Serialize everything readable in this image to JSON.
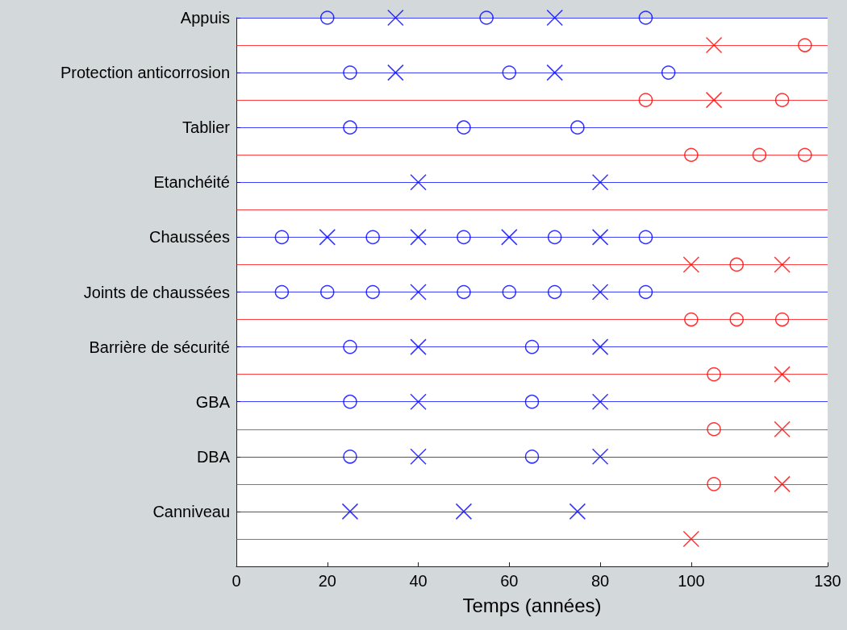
{
  "chart_data": {
    "type": "scatter",
    "orientation": "horizontal",
    "xlabel": "Temps (années)",
    "xlim": [
      0,
      130
    ],
    "xticks": [
      0,
      20,
      40,
      60,
      80,
      100,
      130
    ],
    "categories": [
      "Appuis",
      null,
      "Protection anticorrosion",
      null,
      "Tablier",
      null,
      "Etanchéité",
      null,
      "Chaussées",
      null,
      "Joints de chaussées",
      null,
      "Barrière de sécurité",
      null,
      "GBA",
      null,
      "DBA",
      null,
      "Canniveau",
      null
    ],
    "grid": "y",
    "series": [
      {
        "marker": "circle",
        "colors": [
          "#0000ff",
          "#ff0000",
          "#0000ff",
          "#ff0000",
          "#0000ff",
          "#ff0000",
          null,
          null,
          "#0000ff",
          "#ff0000",
          "#0000ff",
          "#ff0000",
          "#0000ff",
          "#ff0000",
          "#0000ff",
          "#ff0000",
          "#0000ff",
          "#ff0000",
          null,
          null
        ],
        "values": [
          20,
          125,
          25,
          90,
          25,
          100,
          null,
          null,
          10,
          110,
          10,
          100,
          25,
          105,
          25,
          105,
          25,
          105,
          null,
          null
        ]
      },
      {
        "marker": "circle",
        "colors": [
          "#0000ff",
          null,
          "#0000ff",
          "#ff0000",
          "#0000ff",
          "#ff0000",
          null,
          null,
          "#0000ff",
          null,
          "#0000ff",
          "#ff0000",
          "#0000ff",
          null,
          "#0000ff",
          null,
          "#0000ff",
          null,
          null,
          null
        ],
        "values": [
          55,
          null,
          60,
          120,
          50,
          115,
          null,
          null,
          30,
          null,
          20,
          110,
          65,
          null,
          65,
          null,
          65,
          null,
          null,
          null
        ]
      },
      {
        "marker": "circle",
        "colors": [
          "#0000ff",
          null,
          "#0000ff",
          null,
          "#0000ff",
          "#ff0000",
          null,
          null,
          "#0000ff",
          null,
          "#0000ff",
          "#ff0000",
          null,
          null,
          null,
          null,
          null,
          null,
          null,
          null
        ],
        "values": [
          90,
          null,
          95,
          null,
          75,
          125,
          null,
          null,
          50,
          null,
          30,
          120,
          null,
          null,
          null,
          null,
          null,
          null,
          null,
          null
        ]
      },
      {
        "marker": "circle",
        "colors": [
          null,
          null,
          null,
          null,
          null,
          null,
          null,
          null,
          "#0000ff",
          null,
          "#0000ff",
          null,
          null,
          null,
          null,
          null,
          null,
          null,
          null,
          null
        ],
        "values": [
          null,
          null,
          null,
          null,
          null,
          null,
          null,
          null,
          70,
          null,
          50,
          null,
          null,
          null,
          null,
          null,
          null,
          null,
          null,
          null
        ]
      },
      {
        "marker": "circle",
        "colors": [
          null,
          null,
          null,
          null,
          null,
          null,
          null,
          null,
          "#0000ff",
          null,
          "#0000ff",
          null,
          null,
          null,
          null,
          null,
          null,
          null,
          null,
          null
        ],
        "values": [
          null,
          null,
          null,
          null,
          null,
          null,
          null,
          null,
          90,
          null,
          60,
          null,
          null,
          null,
          null,
          null,
          null,
          null,
          null,
          null
        ]
      },
      {
        "marker": "circle",
        "colors": [
          null,
          null,
          null,
          null,
          null,
          null,
          null,
          null,
          null,
          null,
          "#0000ff",
          null,
          null,
          null,
          null,
          null,
          null,
          null,
          null,
          null
        ],
        "values": [
          null,
          null,
          null,
          null,
          null,
          null,
          null,
          null,
          null,
          null,
          70,
          null,
          null,
          null,
          null,
          null,
          null,
          null,
          null,
          null
        ]
      },
      {
        "marker": "circle",
        "colors": [
          null,
          null,
          null,
          null,
          null,
          null,
          null,
          null,
          null,
          null,
          "#0000ff",
          null,
          null,
          null,
          null,
          null,
          null,
          null,
          null,
          null
        ],
        "values": [
          null,
          null,
          null,
          null,
          null,
          null,
          null,
          null,
          null,
          null,
          90,
          null,
          null,
          null,
          null,
          null,
          null,
          null,
          null,
          null
        ]
      },
      {
        "marker": "cross",
        "colors": [
          "#0000ff",
          "#ff0000",
          "#0000ff",
          "#ff0000",
          null,
          null,
          "#0000ff",
          null,
          "#0000ff",
          "#ff0000",
          "#0000ff",
          null,
          "#0000ff",
          "#ff0000",
          "#0000ff",
          "#ff0000",
          "#0000ff",
          "#ff0000",
          "#0000ff",
          "#ff0000"
        ],
        "values": [
          35,
          105,
          35,
          105,
          null,
          null,
          40,
          null,
          20,
          100,
          40,
          null,
          40,
          120,
          40,
          120,
          40,
          120,
          25,
          100
        ]
      },
      {
        "marker": "cross",
        "colors": [
          "#0000ff",
          null,
          "#0000ff",
          null,
          null,
          null,
          "#0000ff",
          null,
          "#0000ff",
          "#ff0000",
          "#0000ff",
          null,
          "#0000ff",
          null,
          "#0000ff",
          null,
          "#0000ff",
          null,
          "#0000ff",
          null
        ],
        "values": [
          70,
          null,
          70,
          null,
          null,
          null,
          80,
          null,
          40,
          120,
          80,
          null,
          80,
          null,
          80,
          null,
          80,
          null,
          50,
          null
        ]
      },
      {
        "marker": "cross",
        "colors": [
          null,
          null,
          null,
          null,
          null,
          null,
          null,
          null,
          "#0000ff",
          null,
          null,
          null,
          null,
          null,
          null,
          null,
          null,
          null,
          "#0000ff",
          null
        ],
        "values": [
          null,
          null,
          null,
          null,
          null,
          null,
          null,
          null,
          60,
          null,
          null,
          null,
          null,
          null,
          null,
          null,
          null,
          null,
          75,
          null
        ]
      },
      {
        "marker": "cross",
        "colors": [
          null,
          null,
          null,
          null,
          null,
          null,
          null,
          null,
          "#0000ff",
          null,
          null,
          null,
          null,
          null,
          null,
          null,
          null,
          null,
          null,
          null
        ],
        "values": [
          null,
          null,
          null,
          null,
          null,
          null,
          null,
          null,
          80,
          null,
          null,
          null,
          null,
          null,
          null,
          null,
          null,
          null,
          null,
          null
        ]
      }
    ]
  }
}
